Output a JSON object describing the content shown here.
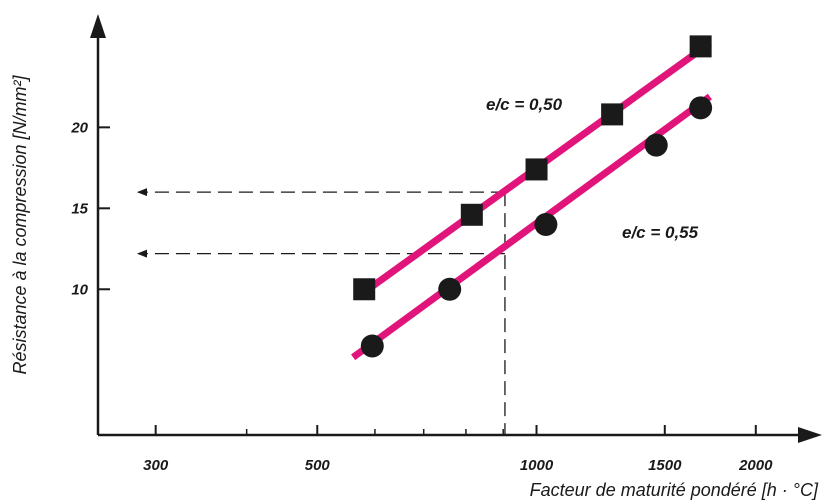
{
  "chart_data": {
    "type": "scatter",
    "xscale": "log",
    "xlabel": "Facteur de maturité pondéré [h · °C]",
    "ylabel": "Résistance à la compression [N/mm²]",
    "xlim": [
      250,
      2300
    ],
    "ylim": [
      1,
      27
    ],
    "xticks_major": [
      300,
      500,
      1000,
      1500,
      2000
    ],
    "xticks_minor": [
      400,
      600,
      700,
      800,
      900
    ],
    "yticks": [
      10,
      15,
      20
    ],
    "grid": false,
    "series": [
      {
        "name": "e/c = 0,50",
        "marker": "square",
        "x": [
          580,
          815,
          1000,
          1270,
          1680
        ],
        "y": [
          10,
          14.6,
          17.4,
          20.8,
          25
        ],
        "fit": {
          "x": [
            575,
            1730
          ],
          "y": [
            9.7,
            25.2
          ]
        }
      },
      {
        "name": "e/c = 0,55",
        "marker": "circle",
        "x": [
          595,
          760,
          1030,
          1460,
          1680
        ],
        "y": [
          6.5,
          10,
          14,
          18.9,
          21.2
        ],
        "fit": {
          "x": [
            560,
            1730
          ],
          "y": [
            5.8,
            21.9
          ]
        }
      }
    ],
    "reference_lines": [
      {
        "x": 905,
        "y": [
          16,
          12.2
        ]
      }
    ],
    "colors": {
      "fit_line": "#e0147a",
      "marker": "#1a1a1a",
      "axis": "#1a1a1a"
    }
  }
}
